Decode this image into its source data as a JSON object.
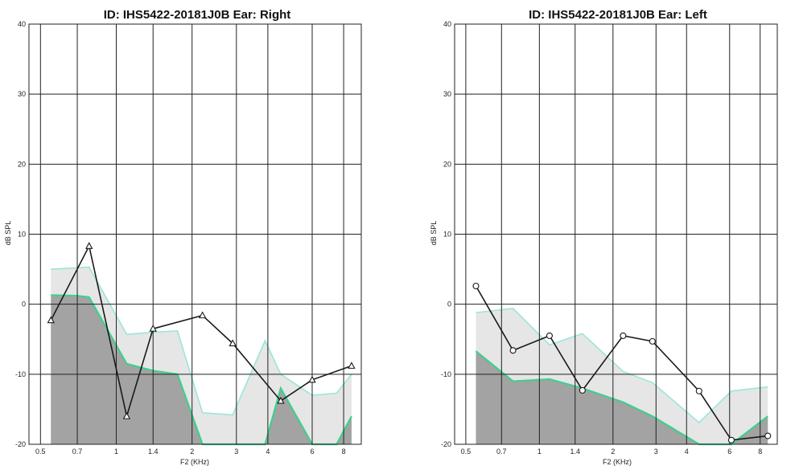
{
  "chart_data": [
    {
      "type": "line",
      "title": "ID: IHS5422-20181J0B    Ear: Right",
      "xlabel": "F2  (KHz)",
      "ylabel": "dB SPL",
      "xscale": "log",
      "ylim": [
        -20,
        40
      ],
      "yticks": [
        -20,
        -10,
        0,
        10,
        20,
        30,
        40
      ],
      "xticks": [
        0.5,
        0.7,
        1,
        1.4,
        2,
        3,
        4,
        6,
        8
      ],
      "grid": true,
      "colors": {
        "upper_band": "#e6e6e6",
        "lower_band": "#a3a3a3",
        "upper_edge": "#9ae6da",
        "lower_edge": "#3fcf8e",
        "series": "#1a1a1a"
      },
      "upper_band": {
        "x": [
          0.55,
          0.7,
          0.78,
          1.1,
          1.4,
          1.75,
          2.2,
          2.9,
          3.9,
          4.5,
          6.0,
          7.5,
          8.6
        ],
        "y": [
          5,
          5.2,
          5.3,
          -4.3,
          -4,
          -3.8,
          -15.5,
          -15.8,
          -5.2,
          -10,
          -13,
          -12.7,
          -10
        ]
      },
      "lower_band": {
        "x": [
          0.55,
          0.7,
          0.78,
          1.1,
          1.4,
          1.75,
          2.2,
          2.9,
          3.9,
          4.5,
          6.0,
          7.5,
          8.6
        ],
        "y": [
          1.3,
          1.2,
          1,
          -8.5,
          -9.5,
          -10,
          -20,
          -20,
          -20,
          -12,
          -20,
          -20,
          -16
        ]
      },
      "series": [
        {
          "x": [
            0.55,
            0.78,
            1.1,
            1.4,
            2.2,
            2.9,
            4.5,
            6.0,
            8.6
          ],
          "y": [
            -2.3,
            8.3,
            -16,
            -3.5,
            -1.6,
            -5.6,
            -13.8,
            -10.8,
            -8.8
          ],
          "marker": "triangle"
        }
      ]
    },
    {
      "type": "line",
      "title": "ID: IHS5422-20181J0B    Ear: Left",
      "xlabel": "F2  (KHz)",
      "ylabel": "dB SPL",
      "xscale": "log",
      "ylim": [
        -20,
        40
      ],
      "yticks": [
        -20,
        -10,
        0,
        10,
        20,
        30,
        40
      ],
      "xticks": [
        0.5,
        0.7,
        1,
        1.4,
        2,
        3,
        4,
        6,
        8
      ],
      "grid": true,
      "colors": {
        "upper_band": "#e6e6e6",
        "lower_band": "#a3a3a3",
        "upper_edge": "#9ae6da",
        "lower_edge": "#3fcf8e",
        "series": "#1a1a1a"
      },
      "upper_band": {
        "x": [
          0.55,
          0.78,
          1.1,
          1.5,
          2.2,
          2.9,
          4.5,
          6.1,
          8.6
        ],
        "y": [
          -1.2,
          -0.6,
          -5.8,
          -4.2,
          -9.6,
          -11.2,
          -16.9,
          -12.4,
          -11.8
        ]
      },
      "lower_band": {
        "x": [
          0.55,
          0.78,
          1.1,
          1.5,
          2.2,
          2.9,
          4.5,
          6.1,
          8.6
        ],
        "y": [
          -6.7,
          -11,
          -10.7,
          -12,
          -14,
          -16,
          -20,
          -20,
          -16
        ]
      },
      "series": [
        {
          "x": [
            0.55,
            0.78,
            1.1,
            1.5,
            2.2,
            2.9,
            4.5,
            6.1,
            8.6
          ],
          "y": [
            2.6,
            -6.6,
            -4.5,
            -12.3,
            -4.5,
            -5.3,
            -12.4,
            -19.4,
            -18.8
          ],
          "marker": "circle"
        }
      ]
    }
  ]
}
